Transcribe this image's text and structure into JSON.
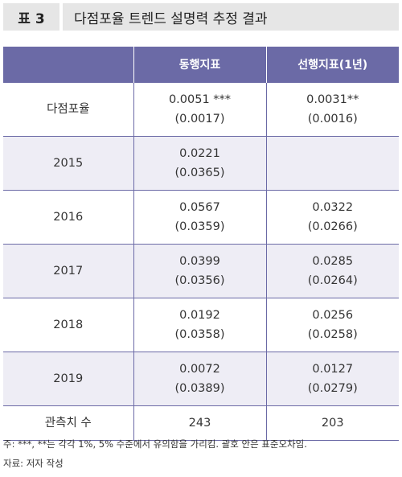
{
  "title": {
    "label": "표 3",
    "text": "다점포율 트렌드 설명력 추정 결과"
  },
  "table": {
    "headers": [
      "",
      "동행지표",
      "선행지표(1년)"
    ],
    "rows": [
      {
        "label": "다점포율",
        "c1": [
          "0.0051 ***",
          "(0.0017)"
        ],
        "c2": [
          "0.0031**",
          "(0.0016)"
        ]
      },
      {
        "label": "2015",
        "c1": [
          "0.0221",
          "(0.0365)"
        ],
        "c2": [
          "",
          ""
        ]
      },
      {
        "label": "2016",
        "c1": [
          "0.0567",
          "(0.0359)"
        ],
        "c2": [
          "0.0322",
          "(0.0266)"
        ]
      },
      {
        "label": "2017",
        "c1": [
          "0.0399",
          "(0.0356)"
        ],
        "c2": [
          "0.0285",
          "(0.0264)"
        ]
      },
      {
        "label": "2018",
        "c1": [
          "0.0192",
          "(0.0358)"
        ],
        "c2": [
          "0.0256",
          "(0.0258)"
        ]
      },
      {
        "label": "2019",
        "c1": [
          "0.0072",
          "(0.0389)"
        ],
        "c2": [
          "0.0127",
          "(0.0279)"
        ]
      }
    ],
    "total": {
      "label": "관측치 수",
      "c1": "243",
      "c2": "203"
    }
  },
  "notes": {
    "note1": "주: ***, **는 각각 1%, 5% 수준에서 유의함을 가리킴. 괄호 안은 표준오차임.",
    "source": "자료: 저자 작성"
  }
}
